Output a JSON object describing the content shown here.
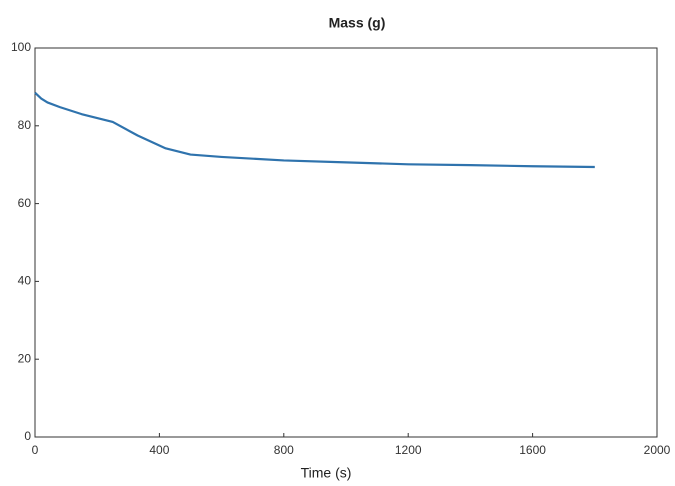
{
  "chart_data": {
    "type": "line",
    "title": "Mass (g)",
    "x_label": "Time (s)",
    "x": [
      0,
      20,
      40,
      80,
      150,
      250,
      330,
      420,
      500,
      600,
      800,
      1000,
      1200,
      1400,
      1600,
      1800
    ],
    "series": [
      {
        "color": "#2f73ad",
        "values": [
          88.5,
          87,
          86,
          84.8,
          83,
          81,
          77.5,
          74.2,
          72.6,
          72,
          71.1,
          70.6,
          70.1,
          69.9,
          69.6,
          69.4
        ]
      }
    ],
    "xlim": [
      0,
      2000
    ],
    "xticks": [
      0,
      400,
      800,
      1200,
      1600,
      2000
    ],
    "ylim": [
      0,
      100
    ],
    "yticks": [
      0,
      20,
      40,
      60,
      80,
      100
    ],
    "grid": false
  }
}
